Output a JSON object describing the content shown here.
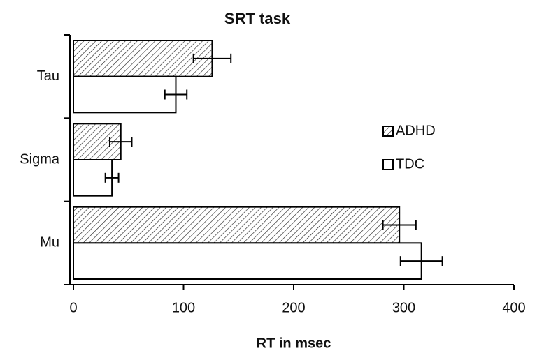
{
  "chart_data": {
    "type": "bar",
    "orientation": "horizontal",
    "title": "SRT task",
    "x_label": "RT in msec",
    "categories": [
      "Tau",
      "Sigma",
      "Mu"
    ],
    "series": [
      {
        "name": "ADHD",
        "color": "#000000",
        "pattern": "hatch",
        "values": [
          126,
          43,
          296
        ],
        "errors": [
          17,
          10,
          15
        ]
      },
      {
        "name": "TDC",
        "color": "#000000",
        "pattern": "none",
        "values": [
          93,
          35,
          316
        ],
        "errors": [
          10,
          6,
          19
        ]
      }
    ],
    "xlim": [
      0,
      400
    ],
    "xticks": [
      0,
      100,
      200,
      300,
      400
    ],
    "grid": false,
    "legend": "right"
  }
}
